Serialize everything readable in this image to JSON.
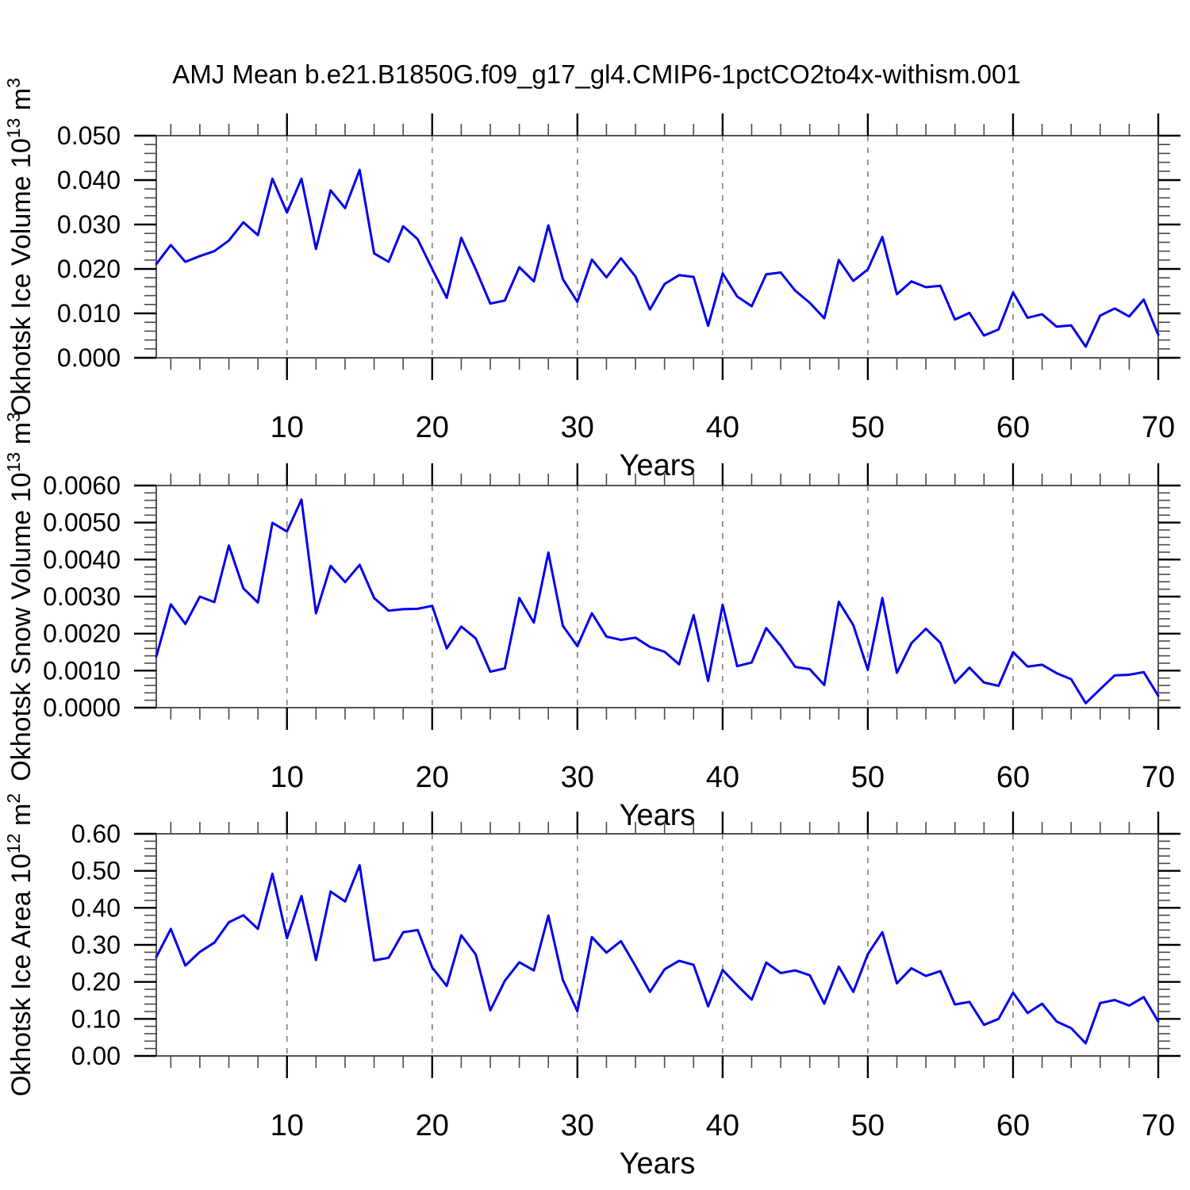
{
  "title": "AMJ Mean b.e21.B1850G.f09_g17_gl4.CMIP6-1pctCO2to4x-withism.001",
  "style": {
    "line_color": "#0000ee",
    "grid_color": "#7f7f7f",
    "frame_color": "#545454",
    "tick_color": "#000000",
    "minor_tick_color": "#4a4a4a",
    "text_color": "#000000"
  },
  "chart_data": {
    "type": "line",
    "xlabel": "Years",
    "x_range": [
      1,
      70
    ],
    "grid": "vertical dashed gridlines at decades 10-60",
    "legend_position": "none",
    "years": [
      1,
      2,
      3,
      4,
      5,
      6,
      7,
      8,
      9,
      10,
      11,
      12,
      13,
      14,
      15,
      16,
      17,
      18,
      19,
      20,
      21,
      22,
      23,
      24,
      25,
      26,
      27,
      28,
      29,
      30,
      31,
      32,
      33,
      34,
      35,
      36,
      37,
      38,
      39,
      40,
      41,
      42,
      43,
      44,
      45,
      46,
      47,
      48,
      49,
      50,
      51,
      52,
      53,
      54,
      55,
      56,
      57,
      58,
      59,
      60,
      61,
      62,
      63,
      64,
      65,
      66,
      67,
      68,
      69,
      70
    ],
    "panels": [
      {
        "id": "ice-volume",
        "ylabel_plain": "Okhotsk Ice Volume 10^13 m^3",
        "ylabel_prefix": "Okhotsk Ice Volume 10",
        "ylabel_sup": "13",
        "ylabel_unit": " m",
        "ylabel_unit_sup": "3",
        "ylim": [
          0,
          0.05
        ],
        "ytick_step": 0.01,
        "ytick_labels": [
          "0.000",
          "0.010",
          "0.020",
          "0.030",
          "0.040",
          "0.050"
        ],
        "xticks": [
          10,
          20,
          30,
          40,
          50,
          60,
          70
        ],
        "xminor_step": 2,
        "grid_years": [
          10,
          20,
          30,
          40,
          50,
          60
        ],
        "values": [
          0.0211,
          0.0254,
          0.0216,
          0.0229,
          0.024,
          0.0264,
          0.0305,
          0.0276,
          0.0403,
          0.0327,
          0.0403,
          0.0245,
          0.0377,
          0.0337,
          0.0423,
          0.0235,
          0.0216,
          0.0296,
          0.0267,
          0.02,
          0.0135,
          0.027,
          0.0199,
          0.0122,
          0.0129,
          0.0204,
          0.0172,
          0.0298,
          0.0177,
          0.0126,
          0.0221,
          0.0181,
          0.0224,
          0.0183,
          0.0109,
          0.0166,
          0.0186,
          0.0182,
          0.0072,
          0.019,
          0.0138,
          0.0116,
          0.0188,
          0.0192,
          0.0151,
          0.0124,
          0.0089,
          0.022,
          0.0173,
          0.0199,
          0.0272,
          0.0143,
          0.0172,
          0.0159,
          0.0162,
          0.0086,
          0.0101,
          0.005,
          0.0064,
          0.0147,
          0.009,
          0.0098,
          0.007,
          0.0073,
          0.0025,
          0.0095,
          0.0111,
          0.0093,
          0.0131,
          0.0052
        ]
      },
      {
        "id": "snow-volume",
        "ylabel_plain": "Okhotsk Snow Volume 10^13 m^3",
        "ylabel_prefix": "Okhotsk Snow Volume 10",
        "ylabel_sup": "13",
        "ylabel_unit": " m",
        "ylabel_unit_sup": "3",
        "ylim": [
          0,
          0.006
        ],
        "ytick_step": 0.001,
        "ytick_labels": [
          "0.0000",
          "0.0010",
          "0.0020",
          "0.0030",
          "0.0040",
          "0.0050",
          "0.0060"
        ],
        "xticks": [
          10,
          20,
          30,
          40,
          50,
          60,
          70
        ],
        "xminor_step": 2,
        "grid_years": [
          10,
          20,
          30,
          40,
          50,
          60
        ],
        "values": [
          0.00138,
          0.00279,
          0.00226,
          0.003,
          0.00285,
          0.00438,
          0.00322,
          0.00284,
          0.00499,
          0.00476,
          0.00562,
          0.00255,
          0.00383,
          0.00339,
          0.00386,
          0.00296,
          0.00262,
          0.00266,
          0.00267,
          0.00275,
          0.0016,
          0.00219,
          0.00187,
          0.00097,
          0.00106,
          0.00296,
          0.0023,
          0.00419,
          0.00221,
          0.00166,
          0.00255,
          0.00192,
          0.00183,
          0.00189,
          0.00164,
          0.00151,
          0.00117,
          0.0025,
          0.00072,
          0.00278,
          0.00112,
          0.00122,
          0.00215,
          0.00167,
          0.0011,
          0.00104,
          0.00061,
          0.00286,
          0.00223,
          0.00102,
          0.00296,
          0.00094,
          0.00174,
          0.00213,
          0.00175,
          0.00067,
          0.00108,
          0.00068,
          0.00059,
          0.0015,
          0.00111,
          0.00116,
          0.00093,
          0.00077,
          0.00012,
          0.0005,
          0.00087,
          0.00089,
          0.00096,
          0.00032
        ]
      },
      {
        "id": "ice-area",
        "ylabel_plain": "Okhotsk Ice Area 10^12 m^2",
        "ylabel_prefix": "Okhotsk Ice Area 10",
        "ylabel_sup": "12",
        "ylabel_unit": " m",
        "ylabel_unit_sup": "2",
        "ylim": [
          0,
          0.6
        ],
        "ytick_step": 0.1,
        "ytick_labels": [
          "0.00",
          "0.10",
          "0.20",
          "0.30",
          "0.40",
          "0.50",
          "0.60"
        ],
        "xticks": [
          10,
          20,
          30,
          40,
          50,
          60,
          70
        ],
        "xminor_step": 2,
        "grid_years": [
          10,
          20,
          30,
          40,
          50,
          60
        ],
        "values": [
          0.267,
          0.343,
          0.244,
          0.281,
          0.306,
          0.361,
          0.38,
          0.343,
          0.492,
          0.318,
          0.432,
          0.259,
          0.444,
          0.417,
          0.515,
          0.258,
          0.265,
          0.334,
          0.34,
          0.239,
          0.189,
          0.326,
          0.274,
          0.123,
          0.203,
          0.253,
          0.231,
          0.379,
          0.205,
          0.121,
          0.321,
          0.279,
          0.31,
          0.243,
          0.173,
          0.234,
          0.257,
          0.246,
          0.134,
          0.232,
          0.191,
          0.152,
          0.252,
          0.224,
          0.231,
          0.218,
          0.141,
          0.241,
          0.173,
          0.275,
          0.334,
          0.196,
          0.237,
          0.216,
          0.229,
          0.139,
          0.146,
          0.084,
          0.1,
          0.171,
          0.116,
          0.141,
          0.093,
          0.075,
          0.034,
          0.143,
          0.151,
          0.136,
          0.159,
          0.093
        ]
      }
    ]
  }
}
